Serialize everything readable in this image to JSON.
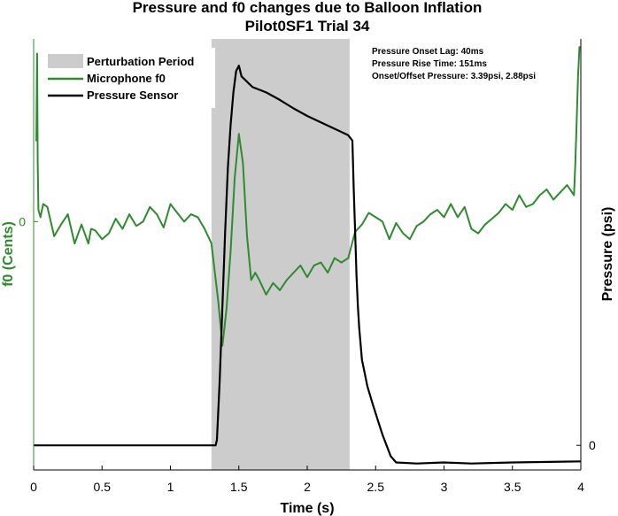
{
  "chart_data": {
    "type": "line",
    "title": "Pressure and f0 changes due to Balloon Inflation",
    "subtitle": "Pilot0SF1 Trial 34",
    "xlabel": "Time (s)",
    "ylabel_left": "f0 (Cents)",
    "ylabel_right": "Pressure (psi)",
    "xlim": [
      0,
      4
    ],
    "x_ticks": [
      "0",
      "0.5",
      "1",
      "1.5",
      "2",
      "2.5",
      "3",
      "3.5",
      "4"
    ],
    "y_left_ticks": [
      "0"
    ],
    "y_right_ticks": [
      "0"
    ],
    "ylim_left": [
      -170,
      125
    ],
    "ylim_right": [
      -0.23,
      3.8
    ],
    "left_axis_color": "#2e8b2e",
    "right_axis_color": "#000000",
    "shaded_region": {
      "name": "Perturbation Period",
      "x": [
        1.3,
        2.31
      ],
      "color": "#cccccc"
    },
    "legend": [
      "Perturbation Period",
      "Microphone f0",
      "Pressure Sensor"
    ],
    "legend_position": "top-left",
    "annotations": [
      "Pressure Onset Lag: 40ms",
      "Pressure Rise Time: 151ms",
      "Onset/Offset Pressure: 3.39psi, 2.88psi"
    ],
    "series": [
      {
        "name": "Microphone f0",
        "axis": "left",
        "color": "#2e8b2e",
        "x": [
          0.02,
          0.025,
          0.03,
          0.035,
          0.05,
          0.07,
          0.1,
          0.15,
          0.2,
          0.25,
          0.3,
          0.35,
          0.4,
          0.42,
          0.45,
          0.5,
          0.55,
          0.6,
          0.65,
          0.7,
          0.75,
          0.8,
          0.85,
          0.9,
          0.95,
          1.0,
          1.05,
          1.1,
          1.15,
          1.2,
          1.25,
          1.3,
          1.35,
          1.38,
          1.41,
          1.44,
          1.47,
          1.5,
          1.53,
          1.56,
          1.59,
          1.62,
          1.65,
          1.7,
          1.75,
          1.8,
          1.85,
          1.9,
          1.95,
          2.0,
          2.05,
          2.1,
          2.15,
          2.2,
          2.25,
          2.3,
          2.35,
          2.4,
          2.45,
          2.5,
          2.55,
          2.6,
          2.65,
          2.7,
          2.75,
          2.8,
          2.85,
          2.9,
          2.95,
          3.0,
          3.05,
          3.1,
          3.15,
          3.2,
          3.25,
          3.3,
          3.35,
          3.4,
          3.45,
          3.5,
          3.55,
          3.6,
          3.65,
          3.7,
          3.75,
          3.8,
          3.85,
          3.9,
          3.95,
          3.96,
          3.97,
          3.98,
          3.99
        ],
        "values": [
          55,
          115,
          40,
          8,
          3,
          12,
          10,
          -10,
          -2,
          5,
          -15,
          -2,
          -15,
          -5,
          -6,
          -12,
          -8,
          2,
          -5,
          5,
          -3,
          0,
          10,
          5,
          -4,
          12,
          6,
          0,
          5,
          3,
          -5,
          -15,
          -55,
          -85,
          -60,
          -20,
          30,
          60,
          40,
          -10,
          -40,
          -35,
          -40,
          -50,
          -42,
          -47,
          -40,
          -35,
          -30,
          -38,
          -30,
          -28,
          -35,
          -25,
          -28,
          -25,
          -7,
          -2,
          6,
          3,
          0,
          -12,
          -1,
          -8,
          -12,
          -3,
          0,
          5,
          8,
          3,
          12,
          3,
          10,
          -5,
          -8,
          -2,
          2,
          6,
          12,
          8,
          18,
          10,
          12,
          18,
          22,
          15,
          20,
          25,
          18,
          40,
          70,
          100,
          120
        ]
      },
      {
        "name": "Pressure Sensor",
        "axis": "right",
        "color": "#000000",
        "x": [
          0.0,
          1.33,
          1.34,
          1.36,
          1.38,
          1.4,
          1.42,
          1.44,
          1.46,
          1.48,
          1.5,
          1.52,
          1.6,
          1.7,
          1.8,
          1.9,
          2.0,
          2.1,
          2.2,
          2.3,
          2.33,
          2.34,
          2.35,
          2.36,
          2.37,
          2.38,
          2.4,
          2.44,
          2.48,
          2.52,
          2.55,
          2.58,
          2.61,
          2.65,
          2.8,
          3.0,
          3.2,
          3.5,
          4.0
        ],
        "values": [
          0.0,
          0.0,
          0.05,
          0.6,
          1.3,
          2.0,
          2.6,
          3.0,
          3.3,
          3.5,
          3.55,
          3.45,
          3.35,
          3.3,
          3.23,
          3.15,
          3.08,
          3.02,
          2.96,
          2.9,
          2.85,
          2.4,
          2.0,
          1.6,
          1.3,
          1.1,
          0.8,
          0.55,
          0.38,
          0.22,
          0.1,
          0.0,
          -0.1,
          -0.16,
          -0.17,
          -0.16,
          -0.17,
          -0.16,
          -0.15
        ]
      }
    ]
  }
}
